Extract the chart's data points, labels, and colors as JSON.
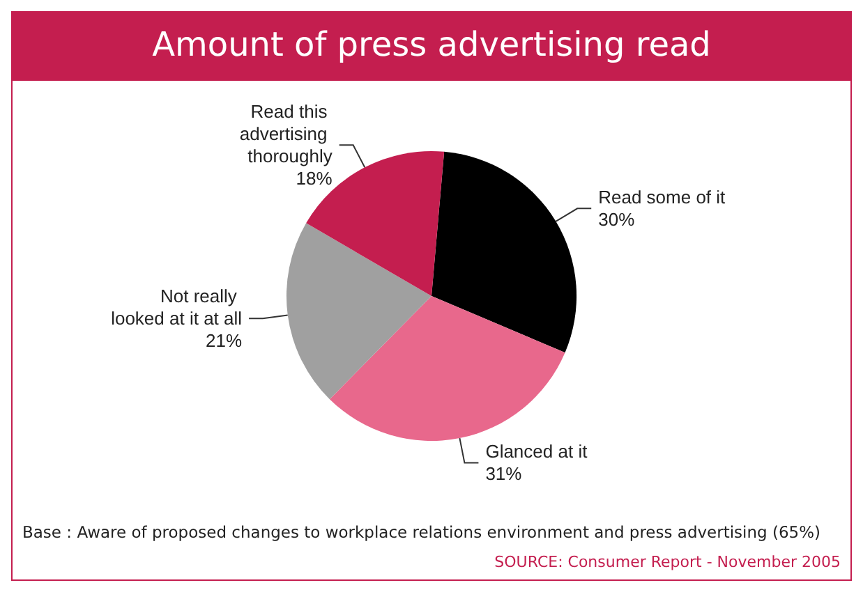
{
  "chart_data": {
    "type": "pie",
    "title": "Amount of press advertising read",
    "categories": [
      "Read some of it",
      "Glanced at it",
      "Not really looked at it at all",
      "Read this advertising thoroughly"
    ],
    "values": [
      30,
      31,
      21,
      18
    ],
    "colors": [
      "#000000",
      "#e8688c",
      "#a0a0a0",
      "#c41e4f"
    ],
    "value_labels": [
      "30%",
      "31%",
      "21%",
      "18%"
    ],
    "legend": false,
    "annotations": [
      "Base : Aware of proposed changes to workplace relations environment and press advertising (65%)",
      "SOURCE: Consumer Report - November 2005"
    ]
  }
}
